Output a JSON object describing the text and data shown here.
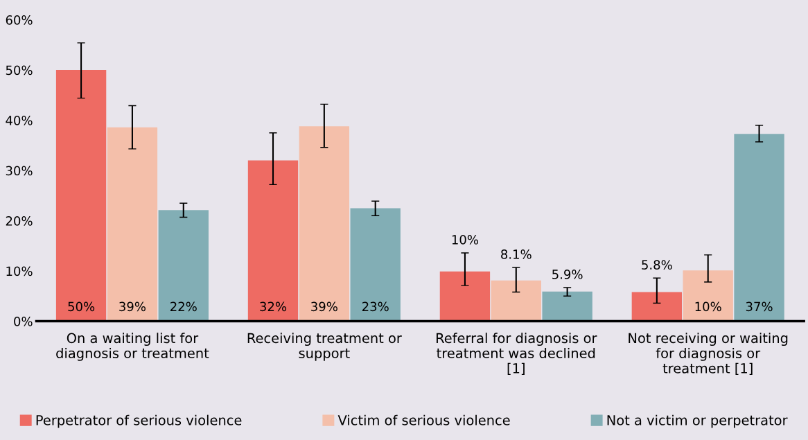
{
  "chart_data": {
    "type": "bar",
    "categories": [
      "On a waiting list for\ndiagnosis or treatment",
      "Receiving treatment or\nsupport",
      "Referral for diagnosis or\ntreatment was declined\n[1]",
      "Not receiving or waiting\nfor diagnosis or\ntreatment [1]"
    ],
    "series": [
      {
        "name": "Perpetrator of serious violence",
        "color": "#ee6b63",
        "values": [
          50,
          32,
          9.9,
          5.8
        ],
        "value_labels": [
          "50%",
          "32%",
          "10%",
          "5.8%"
        ],
        "errors": [
          [
            44.4,
            55.4
          ],
          [
            27.2,
            37.5
          ],
          [
            7.1,
            13.6
          ],
          [
            3.6,
            8.6
          ]
        ]
      },
      {
        "name": "Victim of serious violence",
        "color": "#f4bfaa",
        "values": [
          38.6,
          38.8,
          8.1,
          10.1
        ],
        "value_labels": [
          "39%",
          "39%",
          "8.1%",
          "10%"
        ],
        "errors": [
          [
            34.3,
            42.9
          ],
          [
            34.6,
            43.2
          ],
          [
            5.8,
            10.7
          ],
          [
            7.8,
            13.2
          ]
        ]
      },
      {
        "name": "Not a victim or perpetrator",
        "color": "#82aeb5",
        "values": [
          22.1,
          22.5,
          5.9,
          37.3
        ],
        "value_labels": [
          "22%",
          "23%",
          "5.9%",
          "37%"
        ],
        "errors": [
          [
            20.7,
            23.5
          ],
          [
            21.0,
            23.9
          ],
          [
            5.0,
            6.7
          ],
          [
            35.7,
            39.0
          ]
        ]
      }
    ],
    "ylim": [
      0,
      60
    ],
    "yticks": [
      {
        "value": 0,
        "label": "0%"
      },
      {
        "value": 10,
        "label": "10%"
      },
      {
        "value": 20,
        "label": "20%"
      },
      {
        "value": 30,
        "label": "30%"
      },
      {
        "value": 40,
        "label": "40%"
      },
      {
        "value": 50,
        "label": "50%"
      },
      {
        "value": 60,
        "label": "60%"
      }
    ],
    "grid": false,
    "legend": "bottom"
  }
}
